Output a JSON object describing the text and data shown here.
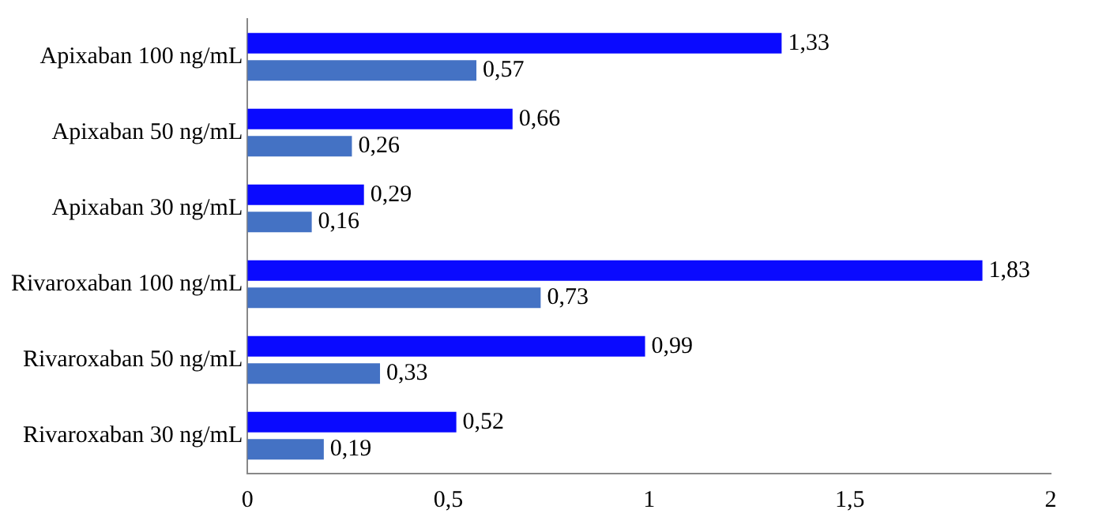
{
  "chart_data": {
    "type": "bar",
    "orientation": "horizontal",
    "categories": [
      "Apixaban 100 ng/mL",
      "Apixaban 50 ng/mL",
      "Apixaban 30 ng/mL",
      "Rivaroxaban 100 ng/mL",
      "Rivaroxaban 50 ng/mL",
      "Rivaroxaban 30 ng/mL"
    ],
    "series": [
      {
        "color": "#0a0aff",
        "values": [
          1.33,
          0.66,
          0.29,
          1.83,
          0.99,
          0.52
        ],
        "value_labels": [
          "1,33",
          "0,66",
          "0,29",
          "1,83",
          "0,99",
          "0,52"
        ]
      },
      {
        "color": "#4472c4",
        "values": [
          0.57,
          0.26,
          0.16,
          0.73,
          0.33,
          0.19
        ],
        "value_labels": [
          "0,57",
          "0,26",
          "0,16",
          "0,73",
          "0,33",
          "0,19"
        ]
      }
    ],
    "xlim": [
      0,
      2
    ],
    "xticks": [
      0,
      {
        "value": 0.5,
        "label": "0,5"
      },
      1,
      {
        "value": 1.5,
        "label": "1,5"
      },
      2
    ],
    "grid": false,
    "legend": false
  }
}
